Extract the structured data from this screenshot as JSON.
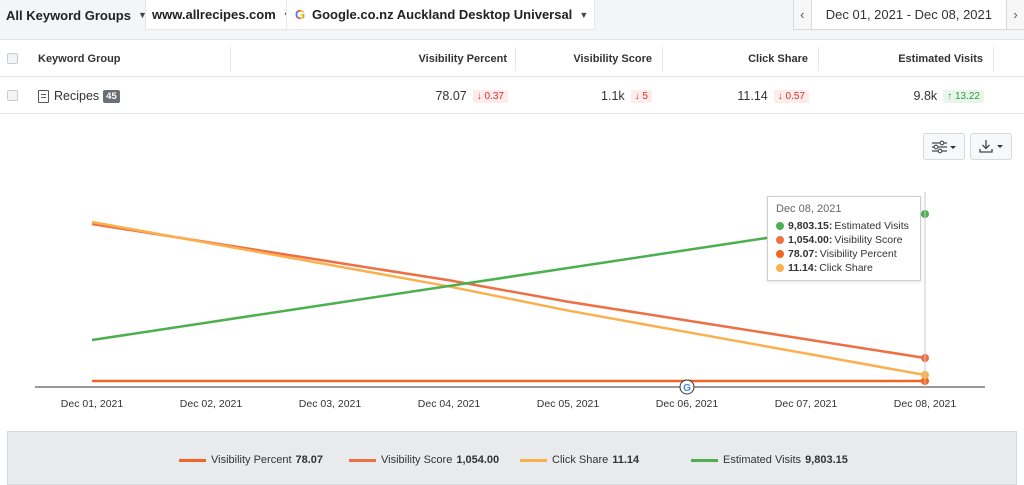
{
  "toolbar": {
    "keyword_groups": "All Keyword Groups",
    "site": "www.allrecipes.com",
    "engine": "Google.co.nz Auckland Desktop Universal",
    "date_range": "Dec 01, 2021 - Dec 08, 2021",
    "prev_label": "‹",
    "next_label": "›"
  },
  "table": {
    "headers": [
      "Keyword Group",
      "Visibility Percent",
      "Visibility Score",
      "Click Share",
      "Estimated Visits"
    ],
    "row": {
      "name": "Recipes",
      "count": "45",
      "visibility_percent": "78.07",
      "visibility_percent_delta": "↓ 0.37",
      "visibility_score": "1.1k",
      "visibility_score_delta": "↓ 5",
      "click_share": "11.14",
      "click_share_delta": "↓ 0.57",
      "estimated_visits": "9.8k",
      "estimated_visits_delta": "↑ 13.22"
    }
  },
  "controls": {
    "settings_icon": "sliders-icon",
    "download_icon": "download-icon"
  },
  "colors": {
    "visibility_percent": "#f26522",
    "visibility_score": "#ee6f44",
    "click_share": "#fbb04e",
    "estimated_visits": "#4caf50"
  },
  "chart_data": {
    "type": "line",
    "x": [
      "Dec 01, 2021",
      "Dec 02, 2021",
      "Dec 03, 2021",
      "Dec 04, 2021",
      "Dec 05, 2021",
      "Dec 06, 2021",
      "Dec 07, 2021",
      "Dec 08, 2021"
    ],
    "annotation_date": "Dec 06, 2021",
    "annotation_icon": "google-icon",
    "series": [
      {
        "name": "Visibility Percent",
        "values": [
          78.44,
          78.39,
          78.34,
          78.28,
          78.23,
          78.18,
          78.12,
          78.07
        ],
        "color": "#f26522"
      },
      {
        "name": "Visibility Score",
        "values": [
          1059,
          1058.3,
          1057.6,
          1056.9,
          1056.1,
          1055.4,
          1054.7,
          1054.0
        ],
        "color": "#ee6f44"
      },
      {
        "name": "Click Share",
        "values": [
          11.71,
          11.63,
          11.55,
          11.47,
          11.38,
          11.3,
          11.22,
          11.14
        ],
        "color": "#fbb04e"
      },
      {
        "name": "Estimated Visits",
        "values": [
          9789.93,
          9791.82,
          9793.71,
          9795.6,
          9797.48,
          9799.37,
          9801.26,
          9803.15
        ],
        "color": "#4caf50"
      }
    ],
    "tooltip": {
      "date": "Dec 08, 2021",
      "items": [
        {
          "value": "9,803.15:",
          "label": "Estimated Visits",
          "color": "#4caf50"
        },
        {
          "value": "1,054.00:",
          "label": "Visibility Score",
          "color": "#ee6f44"
        },
        {
          "value": "78.07:",
          "label": "Visibility Percent",
          "color": "#f26522"
        },
        {
          "value": "11.14:",
          "label": "Click Share",
          "color": "#fbb04e"
        }
      ]
    },
    "legend": [
      {
        "name": "Visibility Percent",
        "value": "78.07",
        "color": "#f26522"
      },
      {
        "name": "Visibility Score",
        "value": "1,054.00",
        "color": "#ee6f44"
      },
      {
        "name": "Click Share",
        "value": "11.14",
        "color": "#fbb04e"
      },
      {
        "name": "Estimated Visits",
        "value": "9,803.15",
        "color": "#4caf50"
      }
    ]
  }
}
